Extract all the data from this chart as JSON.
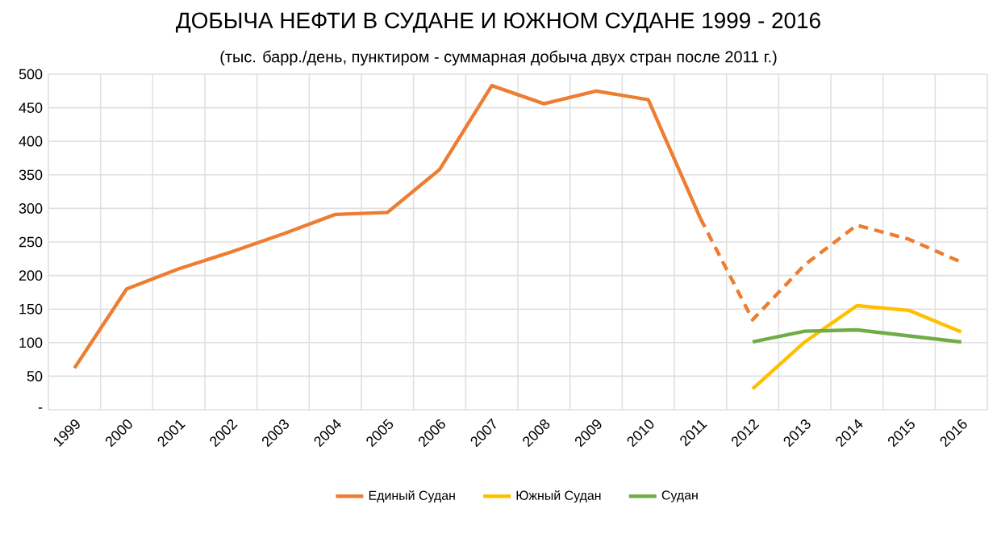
{
  "chart_data": {
    "type": "line",
    "title": "ДОБЫЧА НЕФТИ В СУДАНЕ И ЮЖНОМ СУДАНЕ 1999 - 2016",
    "subtitle": "(тыс. барр./день, пунктиром - суммарная добыча двух стран после 2011 г.)",
    "categories": [
      "1999",
      "2000",
      "2001",
      "2002",
      "2003",
      "2004",
      "2005",
      "2006",
      "2007",
      "2008",
      "2009",
      "2010",
      "2011",
      "2012",
      "2013",
      "2014",
      "2015",
      "2016"
    ],
    "series": [
      {
        "name": "Единый Судан",
        "color": "#ed7d31",
        "line_style": "solid",
        "values": [
          62,
          180,
          210,
          235,
          262,
          291,
          294,
          358,
          483,
          456,
          475,
          462,
          285,
          null,
          null,
          null,
          null,
          null
        ]
      },
      {
        "color": "#ed7d31",
        "line_style": "dashed",
        "values": [
          null,
          null,
          null,
          null,
          null,
          null,
          null,
          null,
          null,
          null,
          null,
          null,
          285,
          134,
          216,
          275,
          254,
          220
        ]
      },
      {
        "name": "Южный Судан",
        "color": "#ffc000",
        "line_style": "solid",
        "values": [
          null,
          null,
          null,
          null,
          null,
          null,
          null,
          null,
          null,
          null,
          null,
          null,
          null,
          31,
          101,
          155,
          148,
          116
        ]
      },
      {
        "name": "Судан",
        "color": "#70ad47",
        "line_style": "solid",
        "values": [
          null,
          null,
          null,
          null,
          null,
          null,
          null,
          null,
          null,
          null,
          null,
          null,
          null,
          101,
          117,
          119,
          110,
          101
        ]
      }
    ],
    "ylim": [
      0,
      500
    ],
    "yticks": [
      {
        "value": 0,
        "label": "-"
      },
      50,
      100,
      150,
      200,
      250,
      300,
      350,
      400,
      450,
      500
    ],
    "grid": true,
    "legend": "bottom"
  }
}
